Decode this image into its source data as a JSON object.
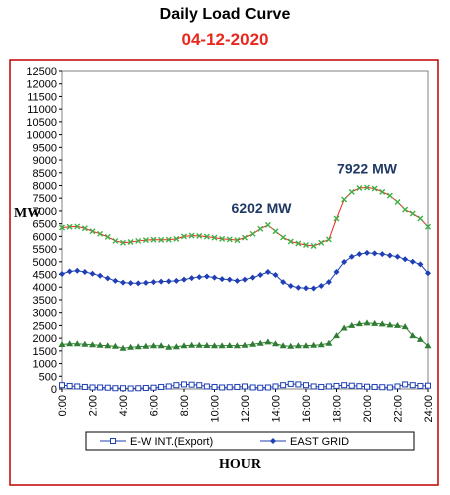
{
  "chart_data": {
    "type": "line",
    "title": "Daily Load Curve",
    "subtitle": "04-12-2020",
    "ylabel": "MW",
    "xlabel": "HOUR",
    "ylim": [
      0,
      12500
    ],
    "xlim": [
      0,
      24
    ],
    "y_ticks": [
      0,
      500,
      1000,
      1500,
      2000,
      2500,
      3000,
      3500,
      4000,
      4500,
      5000,
      5500,
      6000,
      6500,
      7000,
      7500,
      8000,
      8500,
      9000,
      9500,
      10000,
      10500,
      11000,
      11500,
      12000,
      12500
    ],
    "x_ticks": [
      "0:00",
      "2:00",
      "4:00",
      "6:00",
      "8:00",
      "10:00",
      "12:00",
      "14:00",
      "16:00",
      "18:00",
      "20:00",
      "22:00",
      "24:00"
    ],
    "x": [
      0,
      0.5,
      1,
      1.5,
      2,
      2.5,
      3,
      3.5,
      4,
      4.5,
      5,
      5.5,
      6,
      6.5,
      7,
      7.5,
      8,
      8.5,
      9,
      9.5,
      10,
      10.5,
      11,
      11.5,
      12,
      12.5,
      13,
      13.5,
      14,
      14.5,
      15,
      15.5,
      16,
      16.5,
      17,
      17.5,
      18,
      18.5,
      19,
      19.5,
      20,
      20.5,
      21,
      21.5,
      22,
      22.5,
      23,
      23.5,
      24
    ],
    "series": [
      {
        "name": "",
        "color": "#e8281e",
        "marker": "x",
        "marker_color": "#3cb043",
        "values": [
          6350,
          6380,
          6390,
          6320,
          6200,
          6100,
          5980,
          5820,
          5750,
          5780,
          5820,
          5850,
          5870,
          5860,
          5870,
          5900,
          6000,
          6030,
          6020,
          5990,
          5950,
          5900,
          5880,
          5850,
          5950,
          6100,
          6300,
          6450,
          6202,
          5960,
          5800,
          5720,
          5660,
          5620,
          5750,
          5880,
          6700,
          7450,
          7750,
          7900,
          7922,
          7880,
          7750,
          7600,
          7350,
          7050,
          6900,
          6700,
          6380
        ]
      },
      {
        "name": "EAST GRID",
        "color": "#1f3fb4",
        "marker": "diamond",
        "values": [
          4520,
          4620,
          4650,
          4600,
          4530,
          4450,
          4350,
          4250,
          4180,
          4160,
          4150,
          4170,
          4200,
          4220,
          4230,
          4250,
          4300,
          4360,
          4400,
          4420,
          4380,
          4320,
          4300,
          4250,
          4300,
          4380,
          4480,
          4600,
          4480,
          4200,
          4050,
          3980,
          3960,
          3950,
          4050,
          4200,
          4600,
          4990,
          5200,
          5300,
          5350,
          5330,
          5300,
          5250,
          5200,
          5100,
          5000,
          4900,
          4550
        ]
      },
      {
        "name": "",
        "color": "#2e7d32",
        "marker": "triangle",
        "values": [
          1750,
          1780,
          1780,
          1760,
          1740,
          1720,
          1700,
          1680,
          1600,
          1640,
          1660,
          1680,
          1700,
          1700,
          1640,
          1660,
          1700,
          1720,
          1720,
          1710,
          1700,
          1700,
          1710,
          1700,
          1720,
          1760,
          1800,
          1850,
          1780,
          1700,
          1680,
          1700,
          1700,
          1720,
          1740,
          1800,
          2100,
          2400,
          2500,
          2570,
          2600,
          2580,
          2560,
          2520,
          2500,
          2450,
          2100,
          1950,
          1700
        ]
      },
      {
        "name": "E-W INT.(Export)",
        "color": "#1f3fb4",
        "marker": "square",
        "values": [
          150,
          120,
          100,
          80,
          60,
          60,
          50,
          30,
          30,
          20,
          30,
          40,
          50,
          80,
          100,
          150,
          180,
          170,
          150,
          100,
          80,
          60,
          70,
          80,
          100,
          60,
          50,
          60,
          100,
          150,
          200,
          180,
          150,
          100,
          80,
          100,
          120,
          150,
          130,
          110,
          90,
          80,
          70,
          60,
          100,
          180,
          150,
          120,
          130
        ]
      }
    ],
    "annotations": [
      {
        "text": "6202 MW",
        "x": 14,
        "y": 6202
      },
      {
        "text": "7922 MW",
        "x": 20,
        "y": 7922
      }
    ],
    "legend_position": "bottom"
  }
}
